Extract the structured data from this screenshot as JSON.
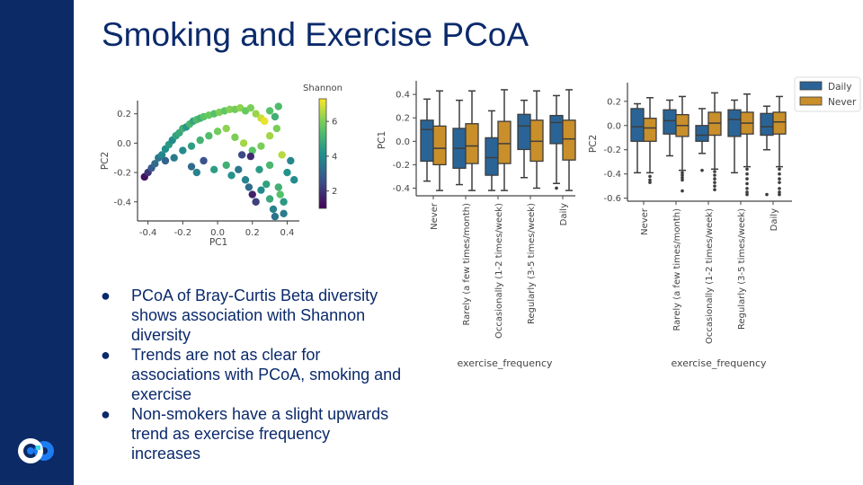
{
  "slide": {
    "title": "Smoking and Exercise PCoA",
    "bullets": [
      "PCoA of Bray-Curtis Beta diversity shows association with Shannon diversity",
      "Trends are not as clear for associations with PCoA, smoking and exercise",
      "Non-smokers have a slight upwards trend as exercise frequency increases"
    ],
    "bullet_glyph": "●",
    "colors": {
      "sidebar": "#0b2a66",
      "title": "#0b2a6b",
      "daily": "#2a6496",
      "never": "#c98f2a"
    }
  },
  "chart_data": [
    {
      "type": "scatter",
      "xlabel": "PC1",
      "ylabel": "PC2",
      "xlim": [
        -0.46,
        0.47
      ],
      "ylim": [
        -0.53,
        0.29
      ],
      "xticks": [
        "-0.4",
        "-0.2",
        "0.0",
        "0.2",
        "0.4"
      ],
      "xtick_values": [
        -0.4,
        -0.2,
        0.0,
        0.2,
        0.4
      ],
      "yticks": [
        "0.2",
        "0.0",
        "-0.2",
        "-0.4"
      ],
      "ytick_values": [
        0.2,
        0.0,
        -0.2,
        -0.4
      ],
      "colorbar": {
        "label": "Shannon",
        "range": [
          1.0,
          7.3
        ],
        "ticks": [
          "2",
          "4",
          "6"
        ],
        "tick_values": [
          2,
          4,
          6
        ],
        "colormap": "viridis"
      },
      "points": [
        [
          -0.42,
          -0.23,
          1.3
        ],
        [
          -0.4,
          -0.2,
          2.0
        ],
        [
          -0.38,
          -0.17,
          2.8
        ],
        [
          -0.36,
          -0.14,
          3.2
        ],
        [
          -0.34,
          -0.1,
          3.5
        ],
        [
          -0.32,
          -0.08,
          3.9
        ],
        [
          -0.3,
          -0.04,
          4.1
        ],
        [
          -0.28,
          -0.01,
          4.4
        ],
        [
          -0.26,
          0.02,
          4.0
        ],
        [
          -0.24,
          0.05,
          4.6
        ],
        [
          -0.22,
          0.07,
          4.8
        ],
        [
          -0.2,
          0.1,
          5.0
        ],
        [
          -0.18,
          0.11,
          4.3
        ],
        [
          -0.16,
          0.13,
          5.2
        ],
        [
          -0.14,
          0.15,
          4.7
        ],
        [
          -0.12,
          0.16,
          5.4
        ],
        [
          -0.1,
          0.17,
          5.0
        ],
        [
          -0.08,
          0.18,
          5.6
        ],
        [
          -0.05,
          0.19,
          5.8
        ],
        [
          -0.02,
          0.2,
          5.5
        ],
        [
          0.01,
          0.21,
          6.0
        ],
        [
          0.04,
          0.22,
          5.7
        ],
        [
          0.07,
          0.23,
          6.1
        ],
        [
          0.1,
          0.23,
          5.9
        ],
        [
          0.13,
          0.24,
          6.2
        ],
        [
          0.16,
          0.22,
          5.8
        ],
        [
          0.19,
          0.24,
          6.0
        ],
        [
          0.22,
          0.2,
          6.3
        ],
        [
          0.25,
          0.17,
          6.8
        ],
        [
          0.27,
          0.15,
          7.1
        ],
        [
          0.3,
          0.22,
          5.5
        ],
        [
          0.33,
          0.18,
          5.0
        ],
        [
          0.35,
          0.25,
          5.3
        ],
        [
          0.34,
          0.1,
          6.0
        ],
        [
          0.3,
          0.05,
          6.4
        ],
        [
          -0.3,
          -0.12,
          3.0
        ],
        [
          -0.25,
          -0.1,
          3.6
        ],
        [
          -0.2,
          -0.05,
          4.0
        ],
        [
          -0.15,
          -0.02,
          4.5
        ],
        [
          -0.1,
          0.02,
          5.1
        ],
        [
          -0.05,
          0.05,
          5.4
        ],
        [
          0.0,
          0.08,
          5.9
        ],
        [
          0.05,
          0.1,
          6.2
        ],
        [
          0.1,
          0.04,
          6.0
        ],
        [
          0.15,
          0.0,
          6.4
        ],
        [
          0.2,
          -0.05,
          5.6
        ],
        [
          0.25,
          -0.02,
          6.0
        ],
        [
          -0.15,
          -0.16,
          3.2
        ],
        [
          -0.08,
          -0.12,
          2.6
        ],
        [
          -0.02,
          -0.18,
          4.5
        ],
        [
          -0.12,
          -0.2,
          3.8
        ],
        [
          0.05,
          -0.15,
          5.0
        ],
        [
          0.08,
          -0.22,
          4.2
        ],
        [
          0.12,
          -0.18,
          3.5
        ],
        [
          0.16,
          -0.25,
          3.8
        ],
        [
          0.18,
          -0.3,
          3.2
        ],
        [
          0.2,
          -0.35,
          1.6
        ],
        [
          0.22,
          -0.4,
          2.2
        ],
        [
          0.25,
          -0.32,
          4.0
        ],
        [
          0.28,
          -0.28,
          4.6
        ],
        [
          0.3,
          -0.38,
          4.8
        ],
        [
          0.32,
          -0.45,
          3.8
        ],
        [
          0.35,
          -0.3,
          5.0
        ],
        [
          0.38,
          -0.48,
          3.6
        ],
        [
          0.38,
          -0.4,
          4.4
        ],
        [
          0.4,
          -0.2,
          4.2
        ],
        [
          0.42,
          -0.12,
          3.9
        ],
        [
          0.37,
          -0.08,
          6.6
        ],
        [
          0.44,
          -0.25,
          4.0
        ],
        [
          0.3,
          -0.15,
          5.2
        ],
        [
          0.24,
          -0.18,
          4.4
        ],
        [
          0.14,
          -0.08,
          2.4
        ],
        [
          0.19,
          -0.09,
          1.8
        ],
        [
          0.36,
          -0.35,
          5.5
        ],
        [
          0.33,
          -0.5,
          3.4
        ]
      ]
    },
    {
      "type": "box",
      "xlabel": "exercise_frequency",
      "ylabel": "PC1",
      "ylim": [
        -0.45,
        0.47
      ],
      "yticks": [
        "0.4",
        "0.2",
        "0.0",
        "-0.2",
        "-0.4"
      ],
      "ytick_values": [
        0.4,
        0.2,
        0.0,
        -0.2,
        -0.4
      ],
      "categories": [
        "Never",
        "Rarely (a few times/month)",
        "Occasionally (1-2 times/week)",
        "Regularly (3-5 times/week)",
        "Daily"
      ],
      "series": [
        {
          "name": "Daily",
          "boxes": [
            {
              "wlo": -0.34,
              "q1": -0.17,
              "med": 0.1,
              "q3": 0.18,
              "whi": 0.36,
              "outliers": []
            },
            {
              "wlo": -0.37,
              "q1": -0.23,
              "med": -0.06,
              "q3": 0.11,
              "whi": 0.35,
              "outliers": []
            },
            {
              "wlo": -0.42,
              "q1": -0.29,
              "med": -0.14,
              "q3": 0.03,
              "whi": 0.26,
              "outliers": []
            },
            {
              "wlo": -0.31,
              "q1": -0.07,
              "med": 0.13,
              "q3": 0.23,
              "whi": 0.35,
              "outliers": []
            },
            {
              "wlo": -0.36,
              "q1": -0.02,
              "med": 0.16,
              "q3": 0.22,
              "whi": 0.39,
              "outliers": [
                -0.4
              ]
            }
          ]
        },
        {
          "name": "Never",
          "boxes": [
            {
              "wlo": -0.42,
              "q1": -0.2,
              "med": -0.06,
              "q3": 0.13,
              "whi": 0.43,
              "outliers": []
            },
            {
              "wlo": -0.42,
              "q1": -0.19,
              "med": -0.04,
              "q3": 0.15,
              "whi": 0.43,
              "outliers": []
            },
            {
              "wlo": -0.42,
              "q1": -0.19,
              "med": -0.02,
              "q3": 0.17,
              "whi": 0.44,
              "outliers": []
            },
            {
              "wlo": -0.4,
              "q1": -0.17,
              "med": 0.0,
              "q3": 0.18,
              "whi": 0.43,
              "outliers": []
            },
            {
              "wlo": -0.42,
              "q1": -0.16,
              "med": 0.02,
              "q3": 0.18,
              "whi": 0.44,
              "outliers": []
            }
          ]
        }
      ]
    },
    {
      "type": "box",
      "xlabel": "exercise_frequency",
      "ylabel": "PC2",
      "ylim": [
        -0.61,
        0.31
      ],
      "yticks": [
        "0.2",
        "0.0",
        "-0.2",
        "-0.4",
        "-0.6"
      ],
      "ytick_values": [
        0.2,
        0.0,
        -0.2,
        -0.4,
        -0.6
      ],
      "categories": [
        "Never",
        "Rarely (a few times/month)",
        "Occasionally (1-2 times/week)",
        "Regularly (3-5 times/week)",
        "Daily"
      ],
      "legend": {
        "placement": "top-right",
        "entries": [
          "Daily",
          "Never"
        ]
      },
      "series": [
        {
          "name": "Daily",
          "boxes": [
            {
              "wlo": -0.39,
              "q1": -0.13,
              "med": -0.01,
              "q3": 0.14,
              "whi": 0.18,
              "outliers": []
            },
            {
              "wlo": -0.25,
              "q1": -0.07,
              "med": 0.04,
              "q3": 0.13,
              "whi": 0.21,
              "outliers": []
            },
            {
              "wlo": -0.23,
              "q1": -0.13,
              "med": -0.08,
              "q3": 0.0,
              "whi": 0.14,
              "outliers": [
                -0.37
              ]
            },
            {
              "wlo": -0.39,
              "q1": -0.09,
              "med": 0.05,
              "q3": 0.13,
              "whi": 0.21,
              "outliers": []
            },
            {
              "wlo": -0.2,
              "q1": -0.08,
              "med": -0.01,
              "q3": 0.1,
              "whi": 0.16,
              "outliers": [
                -0.57
              ]
            }
          ]
        },
        {
          "name": "Never",
          "boxes": [
            {
              "wlo": -0.39,
              "q1": -0.13,
              "med": -0.02,
              "q3": 0.06,
              "whi": 0.23,
              "outliers": [
                -0.42,
                -0.45,
                -0.47
              ]
            },
            {
              "wlo": -0.37,
              "q1": -0.09,
              "med": 0.0,
              "q3": 0.09,
              "whi": 0.24,
              "outliers": [
                -0.39,
                -0.41,
                -0.43,
                -0.45,
                -0.54
              ]
            },
            {
              "wlo": -0.36,
              "q1": -0.08,
              "med": 0.02,
              "q3": 0.11,
              "whi": 0.27,
              "outliers": [
                -0.38,
                -0.41,
                -0.44,
                -0.47,
                -0.5,
                -0.53
              ]
            },
            {
              "wlo": -0.34,
              "q1": -0.07,
              "med": 0.02,
              "q3": 0.11,
              "whi": 0.26,
              "outliers": [
                -0.36,
                -0.4,
                -0.44,
                -0.48,
                -0.52,
                -0.55,
                -0.57
              ]
            },
            {
              "wlo": -0.34,
              "q1": -0.07,
              "med": 0.03,
              "q3": 0.11,
              "whi": 0.24,
              "outliers": [
                -0.36,
                -0.4,
                -0.44,
                -0.47,
                -0.52,
                -0.55,
                -0.57
              ]
            }
          ]
        }
      ]
    }
  ]
}
